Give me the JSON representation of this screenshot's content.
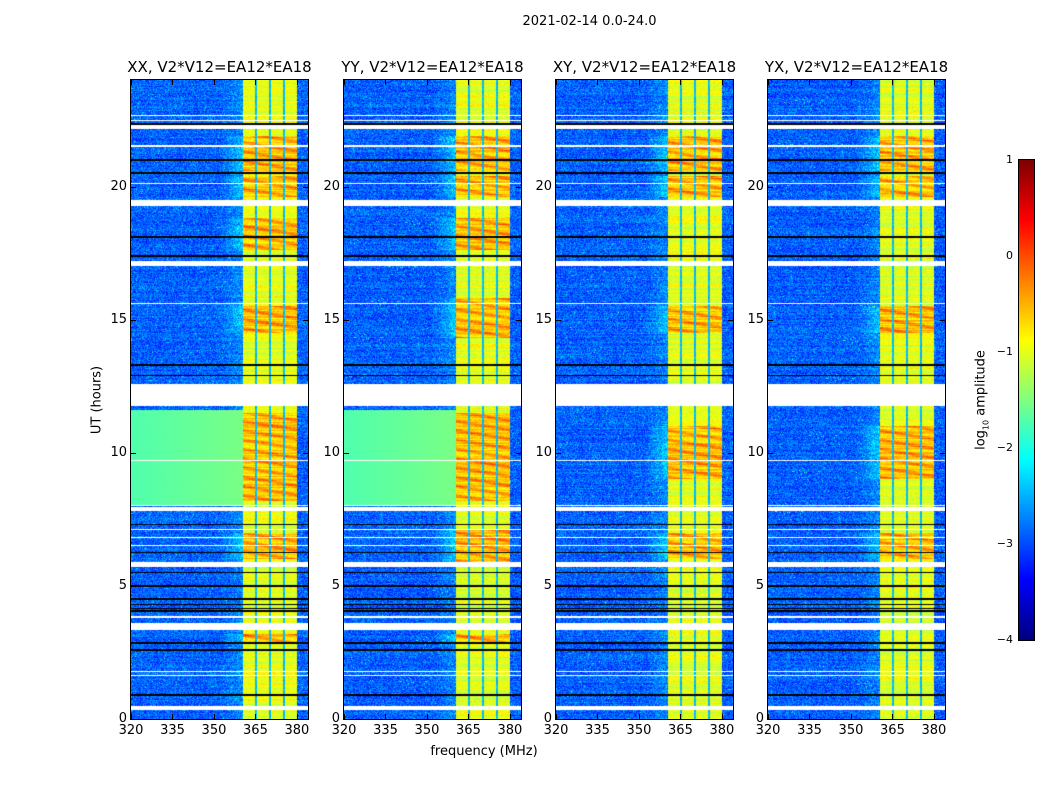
{
  "chart_data": {
    "type": "heatmap",
    "title": "2021-02-14 0.0-24.0",
    "xlabel": "frequency (MHz)",
    "ylabel": "UT (hours)",
    "xlim": [
      320,
      384
    ],
    "ylim": [
      0,
      24
    ],
    "xticks": [
      320,
      335,
      350,
      365,
      380
    ],
    "yticks": [
      0,
      5,
      10,
      15,
      20
    ],
    "colorbar": {
      "label_prefix": "log",
      "label_sub": "10",
      "label_suffix": " amplitude",
      "clim": [
        -4,
        1
      ],
      "ticks": [
        1,
        0,
        -1,
        -2,
        -3,
        -4
      ],
      "tick_labels": [
        "1",
        "0",
        "−1",
        "−2",
        "−3",
        "−4"
      ],
      "colormap": "jet"
    },
    "band_MHz": [
      360.5,
      380
    ],
    "band_gaps_MHz": [
      365.2,
      370.3,
      375.3
    ],
    "flagged_hours": [
      [
        0.35,
        0.5
      ],
      [
        1.6,
        1.65
      ],
      [
        1.75,
        1.8
      ],
      [
        3.35,
        3.6
      ],
      [
        3.8,
        3.85
      ],
      [
        5.7,
        5.9
      ],
      [
        7.8,
        7.95
      ],
      [
        11.75,
        12.6
      ],
      [
        17.0,
        17.2
      ],
      [
        19.25,
        19.5
      ],
      [
        22.15,
        22.3
      ],
      [
        22.45,
        22.5
      ],
      [
        22.65,
        22.7
      ],
      [
        21.5,
        21.55
      ],
      [
        20.1,
        20.12
      ],
      [
        15.6,
        15.62
      ],
      [
        16.4,
        16.42
      ],
      [
        14.0,
        14.02
      ],
      [
        13.7,
        13.72
      ],
      [
        6.5,
        6.52
      ],
      [
        6.8,
        6.82
      ],
      [
        7.1,
        7.12
      ],
      [
        9.7,
        9.72
      ],
      [
        8.0,
        8.02
      ],
      [
        18.4,
        18.42
      ],
      [
        18.8,
        18.82
      ]
    ],
    "dead_hours": [
      0.9,
      2.6,
      2.85,
      4.05,
      4.15,
      4.3,
      4.5,
      5.0,
      5.5,
      6.25,
      7.3,
      12.9,
      13.3,
      17.4,
      18.1,
      20.5,
      21.0,
      22.35
    ],
    "panels": [
      {
        "title": "XX, V2*V12=EA12*EA18",
        "smooth_hours": [
          8.0,
          11.6
        ],
        "hot_hours": [
          [
            20.6,
            21.9
          ],
          [
            19.6,
            20.4
          ],
          [
            17.6,
            18.8
          ],
          [
            14.5,
            15.5
          ],
          [
            8.2,
            11.5
          ],
          [
            6.0,
            7.0
          ],
          [
            2.8,
            3.2
          ]
        ]
      },
      {
        "title": "YY, V2*V12=EA12*EA18",
        "smooth_hours": [
          8.0,
          11.6
        ],
        "hot_hours": [
          [
            20.6,
            21.9
          ],
          [
            19.6,
            20.4
          ],
          [
            17.6,
            18.8
          ],
          [
            14.3,
            15.8
          ],
          [
            8.2,
            11.5
          ],
          [
            5.9,
            7.1
          ],
          [
            2.8,
            3.2
          ]
        ]
      },
      {
        "title": "XY, V2*V12=EA12*EA18",
        "smooth_hours": null,
        "hot_hours": [
          [
            20.6,
            21.9
          ],
          [
            19.6,
            20.4
          ],
          [
            14.5,
            15.5
          ],
          [
            9.0,
            11.0
          ],
          [
            6.0,
            7.0
          ]
        ]
      },
      {
        "title": "YX, V2*V12=EA12*EA18",
        "smooth_hours": null,
        "hot_hours": [
          [
            20.6,
            21.9
          ],
          [
            19.6,
            20.4
          ],
          [
            14.5,
            15.5
          ],
          [
            9.0,
            11.0
          ],
          [
            6.0,
            7.0
          ]
        ]
      }
    ]
  }
}
